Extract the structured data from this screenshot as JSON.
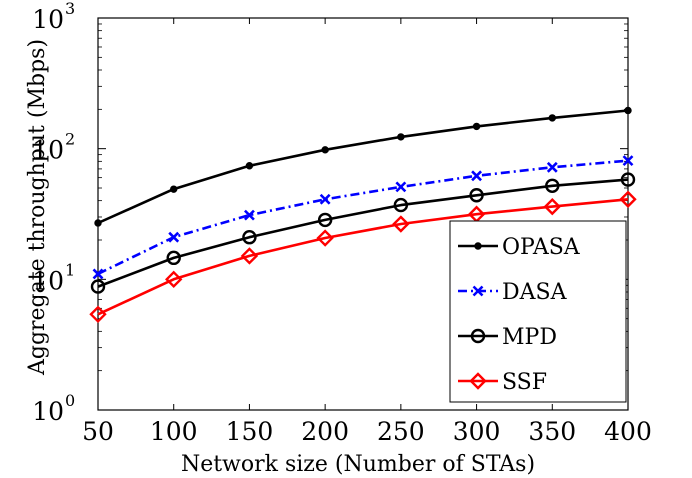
{
  "chart_data": {
    "type": "line",
    "title": "",
    "xlabel": "Network size (Number of STAs)",
    "ylabel": "Aggregate throughput (Mbps)",
    "yscale": "log",
    "xlim": [
      50,
      400
    ],
    "ylim": [
      1,
      1000
    ],
    "x": [
      50,
      100,
      150,
      200,
      250,
      300,
      350,
      400
    ],
    "x_ticks": [
      "50",
      "100",
      "150",
      "200",
      "250",
      "300",
      "350",
      "400"
    ],
    "y_ticks": [
      {
        "value": 1,
        "base": "10",
        "exp": "0"
      },
      {
        "value": 10,
        "base": "10",
        "exp": "1"
      },
      {
        "value": 100,
        "base": "10",
        "exp": "2"
      },
      {
        "value": 1000,
        "base": "10",
        "exp": "3"
      }
    ],
    "legend_position": "lower-right",
    "series": [
      {
        "name": "OPASA",
        "color": "#000000",
        "line": "solid",
        "marker": "dot",
        "values": [
          27,
          49,
          74,
          98,
          123,
          148,
          172,
          196
        ]
      },
      {
        "name": "DASA",
        "color": "#0000ff",
        "line": "dashdot",
        "marker": "x",
        "values": [
          11,
          21,
          31,
          41,
          51,
          62,
          72,
          81
        ]
      },
      {
        "name": "MPD",
        "color": "#000000",
        "line": "solid",
        "marker": "circle",
        "values": [
          8.8,
          14.6,
          21,
          28.5,
          37,
          44,
          52,
          58
        ]
      },
      {
        "name": "SSF",
        "color": "#ff0000",
        "line": "solid",
        "marker": "diamond",
        "values": [
          5.4,
          10,
          15.1,
          20.7,
          26.5,
          31.5,
          36,
          41
        ]
      }
    ]
  }
}
